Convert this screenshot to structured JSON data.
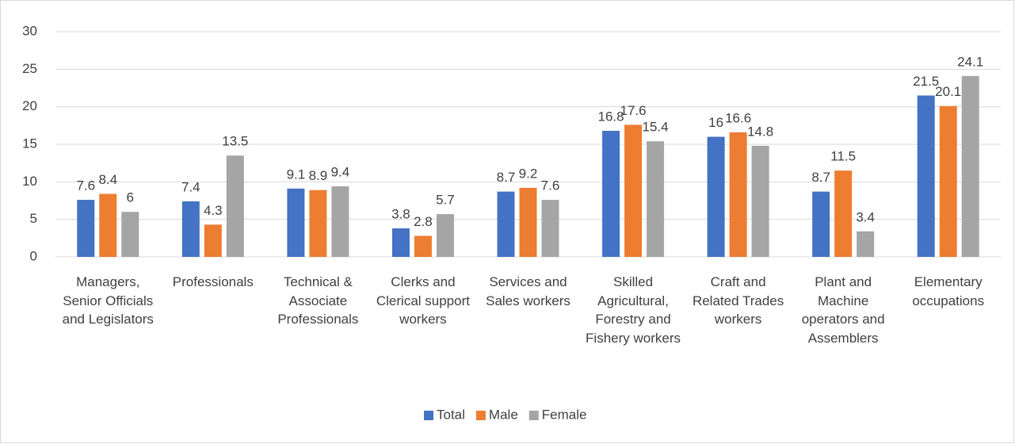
{
  "chart_data": {
    "type": "bar",
    "categories": [
      "Managers, Senior Officials and Legislators",
      "Professionals",
      "Technical & Associate Professionals",
      "Clerks and Clerical support workers",
      "Services and Sales workers",
      "Skilled Agricultural, Forestry and Fishery workers",
      "Craft and Related Trades workers",
      "Plant and Machine operators and Assemblers",
      "Elementary occupations"
    ],
    "series": [
      {
        "name": "Total",
        "color": "#4472c4",
        "values": [
          7.6,
          7.4,
          9.1,
          3.8,
          8.7,
          16.8,
          16,
          8.7,
          21.5
        ]
      },
      {
        "name": "Male",
        "color": "#ed7d31",
        "values": [
          8.4,
          4.3,
          8.9,
          2.8,
          9.2,
          17.6,
          16.6,
          11.5,
          20.1
        ]
      },
      {
        "name": "Female",
        "color": "#a5a5a5",
        "values": [
          6,
          13.5,
          9.4,
          5.7,
          7.6,
          15.4,
          14.8,
          3.4,
          24.1
        ]
      }
    ],
    "ylim": [
      0,
      30
    ],
    "yticks": [
      0,
      5,
      10,
      15,
      20,
      25,
      30
    ],
    "grid": true,
    "legend": "bottom"
  }
}
